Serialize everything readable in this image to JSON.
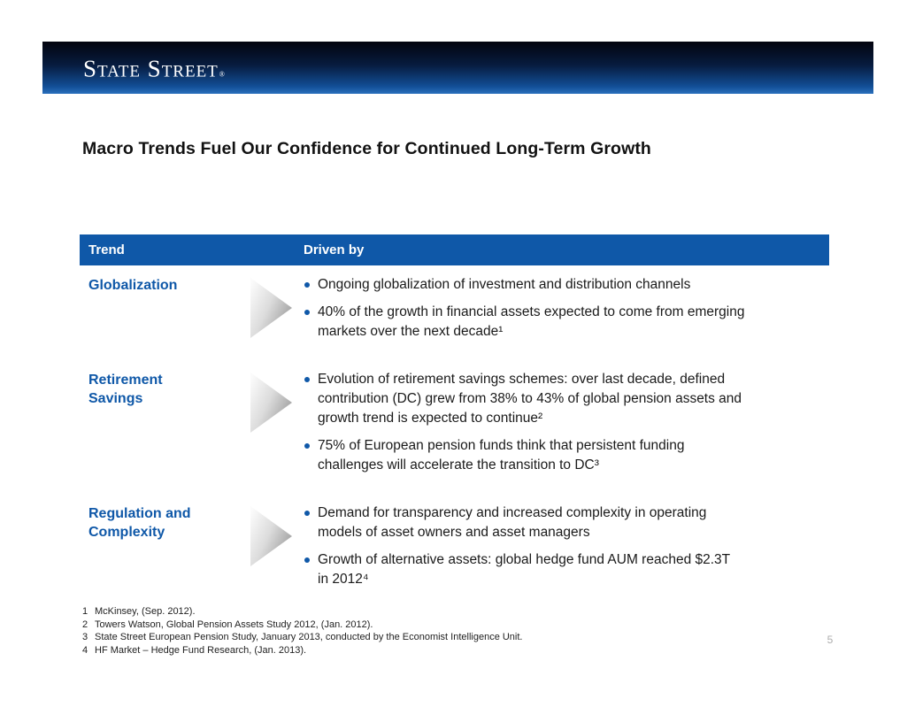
{
  "slide": {
    "logo": {
      "text": "State Street",
      "registered": "®"
    },
    "title": "Macro Trends Fuel Our Confidence for Continued Long-Term Growth",
    "table": {
      "headers": {
        "trend": "Trend",
        "driven_by": "Driven by"
      },
      "rows": [
        {
          "trend": "Globalization",
          "bullets": [
            "Ongoing globalization of investment and distribution channels",
            "40% of the growth in financial assets expected to come from emerging\nmarkets over the next decade¹"
          ]
        },
        {
          "trend": "Retirement Savings",
          "bullets": [
            "Evolution of retirement savings schemes: over last decade, defined\ncontribution (DC) grew from 38% to 43% of global pension assets and\ngrowth trend is expected to continue²",
            "75% of European pension funds think that persistent funding\nchallenges will accelerate the transition to DC³"
          ]
        },
        {
          "trend": "Regulation and Complexity",
          "bullets": [
            "Demand for transparency and increased complexity in operating\nmodels of asset owners and asset managers",
            "Growth of alternative assets: global hedge fund AUM reached $2.3T\nin 2012⁴"
          ]
        }
      ]
    },
    "footnotes": [
      {
        "num": "1",
        "text": "McKinsey, (Sep. 2012)."
      },
      {
        "num": "2",
        "text": "Towers Watson, Global Pension Assets Study 2012, (Jan. 2012)."
      },
      {
        "num": "3",
        "text": "State Street European Pension Study, January 2013, conducted by the Economist Intelligence Unit."
      },
      {
        "num": "4",
        "text": "HF Market – Hedge Fund Research, (Jan. 2013)."
      }
    ],
    "page_number": "5",
    "colors": {
      "brand_blue": "#0F58A8",
      "band_top": "#03040E",
      "band_bottom": "#2A70BD"
    }
  }
}
